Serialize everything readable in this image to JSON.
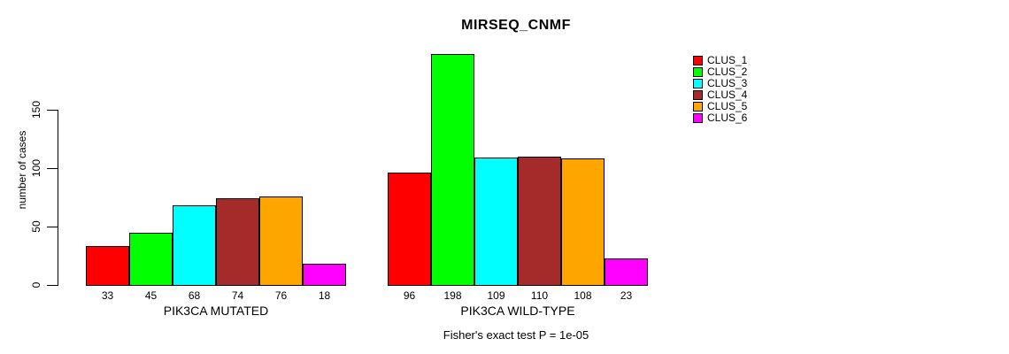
{
  "title": "MIRSEQ_CNMF",
  "footer": {
    "text": "Fisher's exact test P = 1e-05"
  },
  "legend": {
    "items": [
      {
        "label": "CLUS_1",
        "color": "#FF0000"
      },
      {
        "label": "CLUS_2",
        "color": "#00FF00"
      },
      {
        "label": "CLUS_3",
        "color": "#00FFFF"
      },
      {
        "label": "CLUS_4",
        "color": "#A52A2A"
      },
      {
        "label": "CLUS_5",
        "color": "#FFA500"
      },
      {
        "label": "CLUS_6",
        "color": "#FF00FF"
      }
    ]
  },
  "chart_data": {
    "type": "bar",
    "title": "MIRSEQ_CNMF",
    "xlabel": "",
    "ylabel": "number of cases",
    "ylim": [
      0,
      150
    ],
    "yticks": [
      0,
      50,
      100,
      150
    ],
    "grid": false,
    "legend_position": "right",
    "series_names": [
      "CLUS_1",
      "CLUS_2",
      "CLUS_3",
      "CLUS_4",
      "CLUS_5",
      "CLUS_6"
    ],
    "series_colors": [
      "#FF0000",
      "#00FF00",
      "#00FFFF",
      "#A52A2A",
      "#FFA500",
      "#FF00FF"
    ],
    "groups": [
      {
        "label": "PIK3CA MUTATED",
        "values": [
          33,
          45,
          68,
          74,
          76,
          18
        ]
      },
      {
        "label": "PIK3CA WILD-TYPE",
        "values": [
          96,
          198,
          109,
          110,
          108,
          23
        ]
      }
    ],
    "annotation": "Fisher's exact test P = 1e-05"
  }
}
